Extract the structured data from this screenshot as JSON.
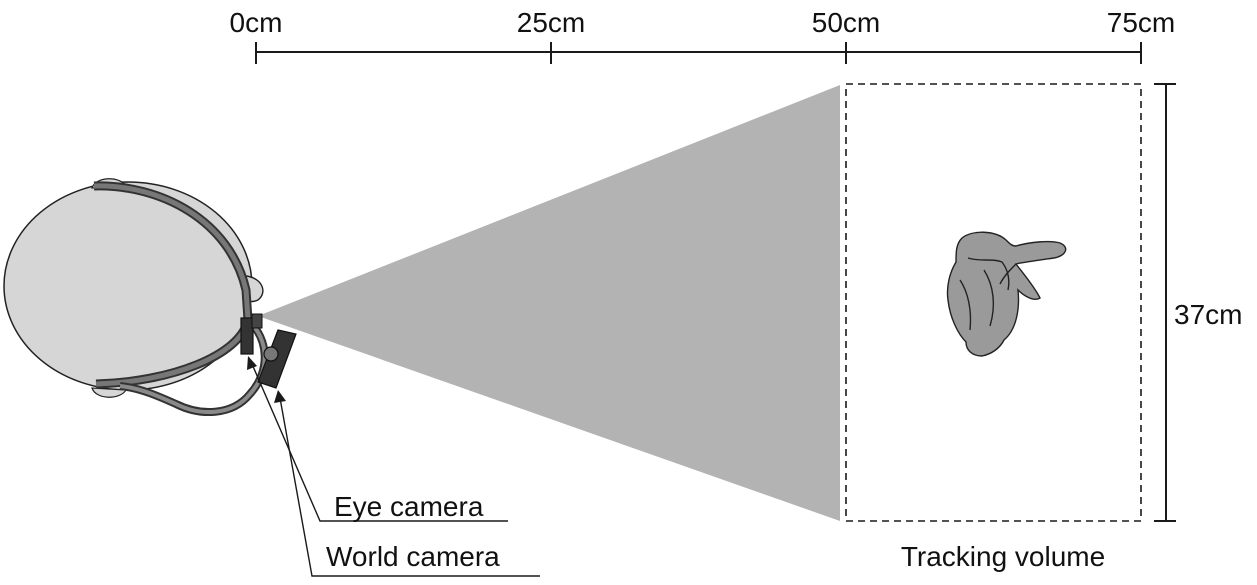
{
  "scale": {
    "ticks": [
      "0cm",
      "25cm",
      "50cm",
      "75cm"
    ]
  },
  "tracking_volume": {
    "height_label": "37cm",
    "caption": "Tracking volume"
  },
  "callouts": {
    "eye_camera": "Eye camera",
    "world_camera": "World camera"
  },
  "colors": {
    "cone": "#b3b3b3",
    "head": "#d6d6d6",
    "object": "#9a9a9a",
    "line": "#1a1a1a"
  },
  "icons": [
    "head-icon",
    "headset-strap-icon",
    "eye-camera-icon",
    "world-camera-icon",
    "tracked-object-icon"
  ]
}
